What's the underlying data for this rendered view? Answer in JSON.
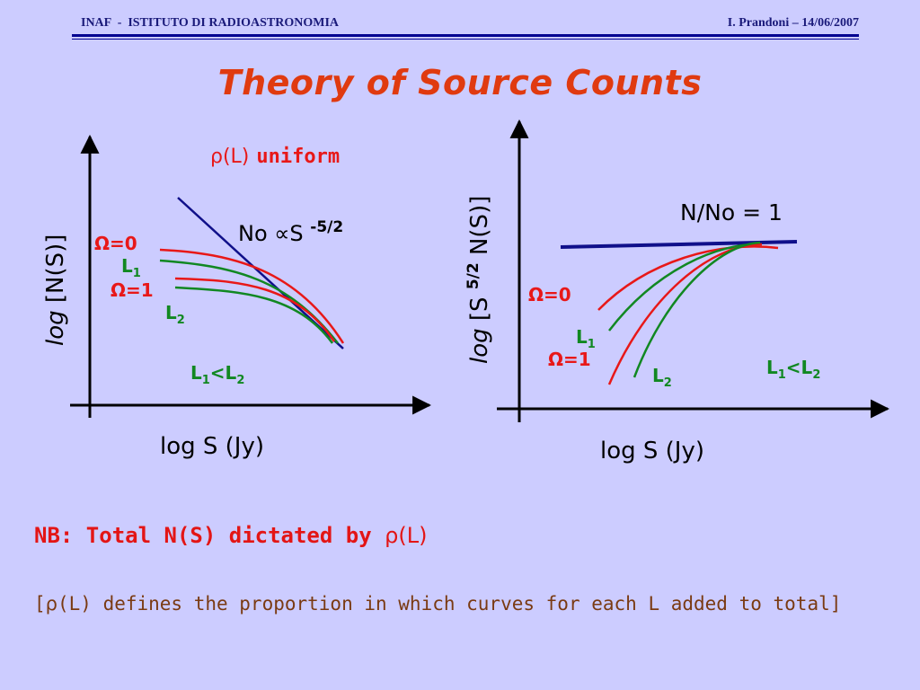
{
  "header": {
    "left": "INAF  -  ISTITUTO DI RADIOASTRONOMIA",
    "right": "I. Prandoni – 14/06/2007"
  },
  "title": "Theory of Source Counts",
  "left_panel": {
    "subtitle_symbol": "ρ",
    "subtitle_paren": "(L)",
    "subtitle_word": "uniform",
    "ylabel_italic": "log",
    "ylabel_rest": " [N(S)]",
    "xlabel": "log S (Jy)",
    "slope_prefix": "No ",
    "slope_propto": "∝",
    "slope_s": "S ",
    "slope_exp": "-5/2",
    "omega0": "Ω=0",
    "omega1": "Ω=1",
    "l1_base": "L",
    "l1_sub": "1",
    "l2_base": "L",
    "l2_sub": "2",
    "rel_l1": "L",
    "rel_sub1": "1",
    "rel_lt": "<L",
    "rel_sub2": "2"
  },
  "right_panel": {
    "ylabel_italic": "log",
    "ylabel_mid": " [S ",
    "ylabel_exp": "5/2",
    "ylabel_end": " N(S)]",
    "xlabel": "log S (Jy)",
    "norm_label": "N/No = 1",
    "omega0": "Ω=0",
    "omega1": "Ω=1",
    "l1_base": "L",
    "l1_sub": "1",
    "l2_base": "L",
    "l2_sub": "2",
    "rel_l1": "L",
    "rel_sub1": "1",
    "rel_lt": "<L",
    "rel_sub2": "2"
  },
  "nb": {
    "prefix": "NB: Total N(S) dictated by ",
    "rho": "ρ",
    "paren": "(L)"
  },
  "note": {
    "open": "[",
    "rho": "ρ",
    "rest": "(L) defines the proportion in which curves for each L added to total]"
  },
  "colors": {
    "background": "#ccccff",
    "title": "#e03a10",
    "red": "#e81818",
    "green": "#118822",
    "blue": "#10108a",
    "brown": "#7a3a12"
  }
}
